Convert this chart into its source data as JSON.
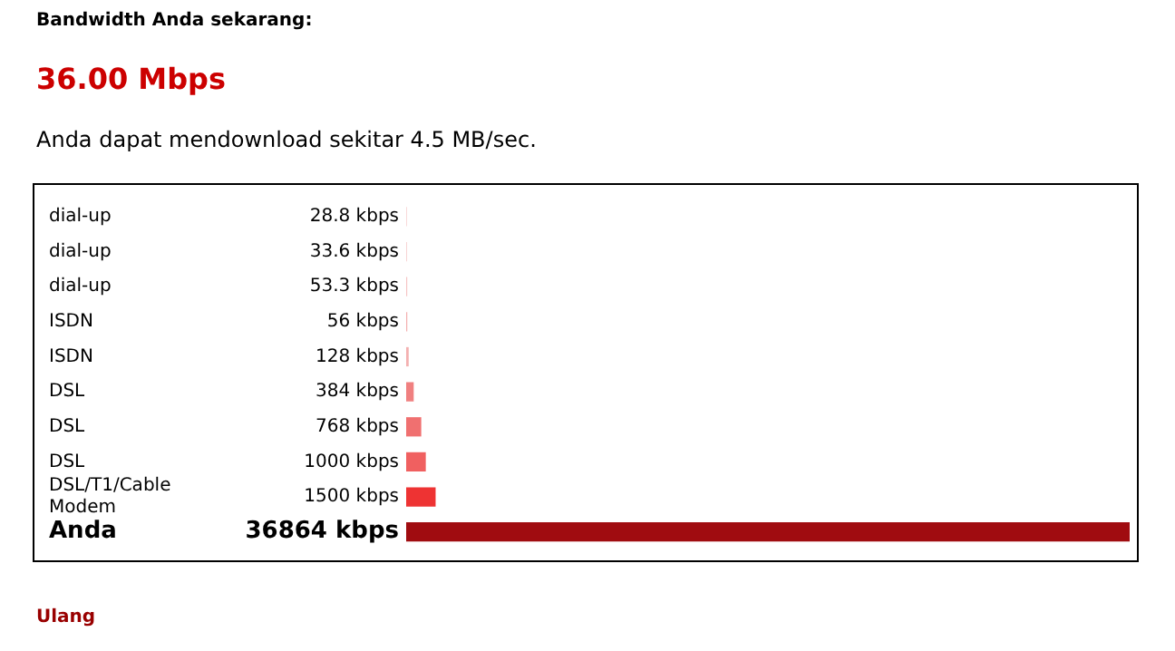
{
  "chart_data": {
    "type": "bar",
    "orientation": "horizontal",
    "title": "Bandwidth Anda sekarang:",
    "subtitle": "36.00 Mbps",
    "annotations": [
      "Anda dapat mendownload sekitar 4.5 MB/sec.",
      "Ulang"
    ],
    "categories": [
      "dial-up",
      "dial-up",
      "dial-up",
      "ISDN",
      "ISDN",
      "DSL",
      "DSL",
      "DSL",
      "DSL/T1/Cable Modem",
      "Anda"
    ],
    "values": [
      28.8,
      33.6,
      53.3,
      56,
      128,
      384,
      768,
      1000,
      1500,
      36864
    ],
    "value_labels": [
      "28.8 kbps",
      "33.6 kbps",
      "53.3 kbps",
      "56 kbps",
      "128 kbps",
      "384 kbps",
      "768 kbps",
      "1000 kbps",
      "1500 kbps",
      "36864 kbps"
    ],
    "colors": [
      "#f6c4c4",
      "#f6c4c4",
      "#f6c4c4",
      "#f4b0b0",
      "#f4b0b0",
      "#f08080",
      "#f07070",
      "#f06060",
      "#ee3333",
      "#a00c10"
    ]
  }
}
